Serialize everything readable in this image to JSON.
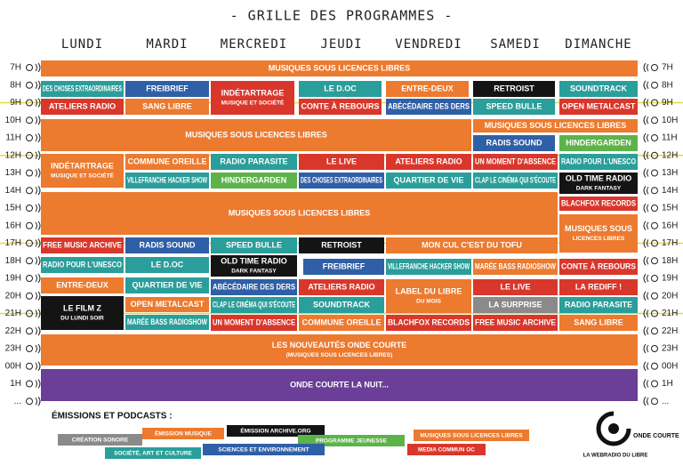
{
  "header": {
    "title": "- GRILLE DES PROGRAMMES -",
    "days": [
      "LUNDI",
      "MARDI",
      "MERCREDI",
      "JEUDI",
      "VENDREDI",
      "SAMEDI",
      "DIMANCHE"
    ]
  },
  "hours": [
    "7H",
    "8H",
    "9H",
    "10H",
    "11H",
    "12H",
    "13H",
    "14H",
    "15H",
    "16H",
    "17H",
    "18H",
    "19H",
    "20H",
    "21H",
    "22H",
    "23H",
    "00H",
    "1H",
    "..."
  ],
  "blocks": [
    {
      "title": "MUSIQUES SOUS LICENCES LIBRES"
    },
    {
      "title": "DES CHOSES EXTRAORDINAIRES"
    },
    {
      "title": "FREIBRIEF"
    },
    {
      "title": "INDÉTARTRAGE",
      "subtitle": "MUSIQUE ET SOCIÉTÉ"
    },
    {
      "title": "LE D.OC"
    },
    {
      "title": "ENTRE-DEUX"
    },
    {
      "title": "RETROIST"
    },
    {
      "title": "SOUNDTRACK"
    },
    {
      "title": "ATELIERS RADIO"
    },
    {
      "title": "SANG LIBRE"
    },
    {
      "title": "CONTE À REBOURS"
    },
    {
      "title": "ABÉCÉDAIRE DES DERS"
    },
    {
      "title": "SPEED BULLE"
    },
    {
      "title": "OPEN METALCAST"
    },
    {
      "title": "MUSIQUES SOUS LICENCES LIBRES"
    },
    {
      "title": "MUSIQUES SOUS LICENCES LIBRES"
    },
    {
      "title": "RADIS SOUND"
    },
    {
      "title": "HINDERGARDEN"
    },
    {
      "title": "INDÉTARTRAGE",
      "subtitle": "MUSIQUE ET SOCIÉTÉ"
    },
    {
      "title": "COMMUNE OREILLE"
    },
    {
      "title": "RADIO PARASITE"
    },
    {
      "title": "LE LIVE"
    },
    {
      "title": "ATELIERS RADIO"
    },
    {
      "title": "UN MOMENT D'ABSENCE"
    },
    {
      "title": "RADIO POUR L'UNESCO"
    },
    {
      "title": "VILLEFRANCHE HACKER SHOW"
    },
    {
      "title": "HINDERGARDEN"
    },
    {
      "title": "DES CHOSES EXTRAORDINAIRES"
    },
    {
      "title": "QUARTIER DE VIE"
    },
    {
      "title": "CLAP LE CINÉMA QUI S'ÉCOUTE"
    },
    {
      "title": "OLD TIME RADIO",
      "subtitle": "DARK FANTASY"
    },
    {
      "title": "MUSIQUES SOUS LICENCES LIBRES"
    },
    {
      "title": "BLACHFOX RECORDS"
    },
    {
      "title": "MUSIQUES SOUS",
      "subtitle": "LICENCES LIBRES"
    },
    {
      "title": "FREE MUSIC ARCHIVE"
    },
    {
      "title": "RADIS SOUND"
    },
    {
      "title": "SPEED BULLE"
    },
    {
      "title": "RETROIST"
    },
    {
      "title": "MON CUL C'EST DU TOFU"
    },
    {
      "title": "RADIO POUR L'UNESCO"
    },
    {
      "title": "LE D.OC"
    },
    {
      "title": "OLD TIME RADIO",
      "subtitle": "DARK FANTASY"
    },
    {
      "title": "FREIBRIEF"
    },
    {
      "title": "VILLEFRANCHE HACKER SHOW"
    },
    {
      "title": "MARÉE BASS RADIOSHOW"
    },
    {
      "title": "CONTE À REBOURS"
    },
    {
      "title": "ENTRE-DEUX"
    },
    {
      "title": "QUARTIER DE VIE"
    },
    {
      "title": "ABÉCÉDAIRE DES DERS"
    },
    {
      "title": "ATELIERS RADIO"
    },
    {
      "title": "LABEL DU LIBRE",
      "subtitle": "DU MOIS"
    },
    {
      "title": "LE LIVE"
    },
    {
      "title": "LA REDIFF !"
    },
    {
      "title": "LE FILM Z",
      "subtitle": "DU LUNDI SOIR"
    },
    {
      "title": "OPEN METALCAST"
    },
    {
      "title": "CLAP LE CINÉMA QUI S'ÉCOUTE"
    },
    {
      "title": "SOUNDTRACK"
    },
    {
      "title": "LA SURPRISE"
    },
    {
      "title": "RADIO PARASITE"
    },
    {
      "title": "MARÉE BASS RADIOSHOW"
    },
    {
      "title": "UN MOMENT D'ABSENCE"
    },
    {
      "title": "COMMUNE OREILLE"
    },
    {
      "title": "BLACHFOX RECORDS"
    },
    {
      "title": "FREE MUSIC ARCHIVE"
    },
    {
      "title": "SANG LIBRE"
    },
    {
      "title": "LES NOUVEAUTÉS ONDE COURTE",
      "subtitle": "(MUSIQUES SOUS LICENCES LIBRES)"
    },
    {
      "title": "ONDE COURTE LA NUIT..."
    }
  ],
  "legend": {
    "title": "ÉMISSIONS ET PODCASTS :",
    "items": [
      "CRÉATION SONORE",
      "ÉMISSION MUSIQUE",
      "ÉMISSION ARCHIVE.ORG",
      "PROGRAMME JEUNESSE",
      "MUSIQUES SOUS LICENCES LIBRES",
      "SOCIÉTÉ, ART ET CULTURE",
      "SCIENCES ET ENVIRONNEMENT",
      "MEDIA COMMUN OC"
    ]
  },
  "logo": {
    "name": "ONDE COURTE",
    "tagline": "LA WEBRADIO DU LIBRE"
  }
}
